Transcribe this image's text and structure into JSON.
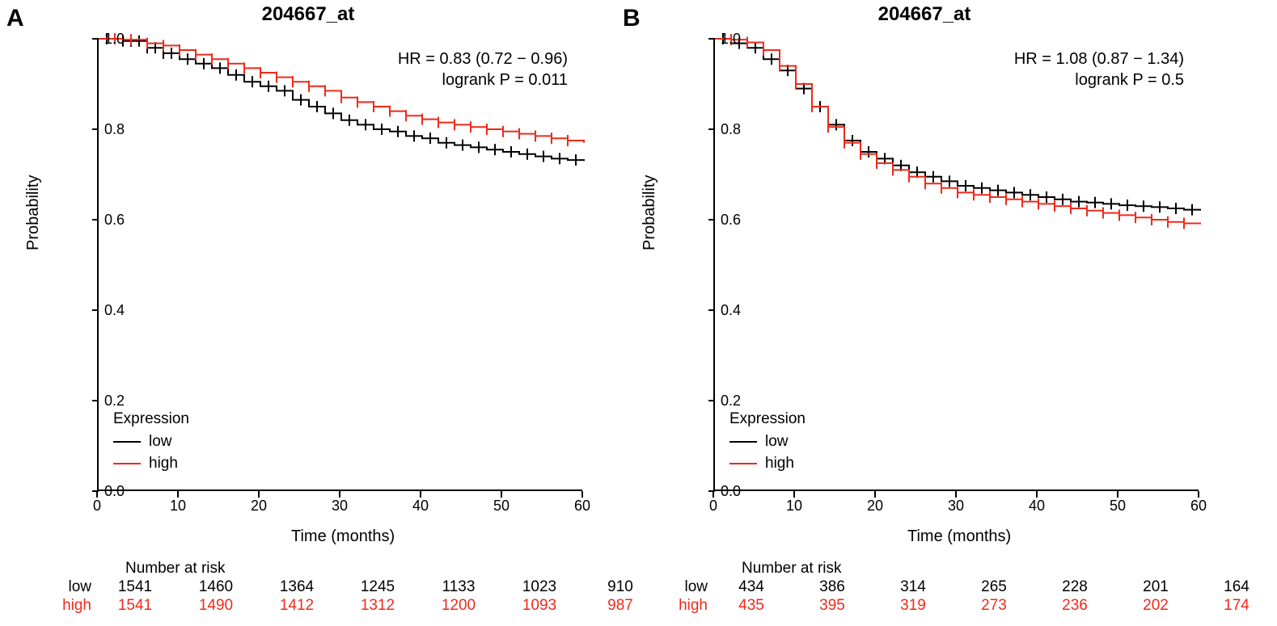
{
  "colors": {
    "low": "#000000",
    "high": "#ee2a1a",
    "censor": "#000000",
    "bg": "#ffffff"
  },
  "panels": [
    {
      "letter": "A",
      "title": "204667_at",
      "hr_line": "HR = 0.83 (0.72 − 0.96)",
      "p_line": "logrank P = 0.011",
      "legend_title": "Expression",
      "legend_low": "low",
      "legend_high": "high",
      "xlabel": "Time (months)",
      "ylabel": "Probability",
      "x_ticks": [
        0,
        10,
        20,
        30,
        40,
        50,
        60
      ],
      "y_ticks": [
        0.0,
        0.2,
        0.4,
        0.6,
        0.8,
        1.0
      ],
      "xlim": [
        0,
        60
      ],
      "ylim": [
        0,
        1
      ],
      "line_width": 2,
      "censor_size": 7,
      "series": {
        "low": {
          "color": "#000000",
          "points": [
            [
              0,
              1.0
            ],
            [
              3,
              0.995
            ],
            [
              6,
              0.98
            ],
            [
              8,
              0.968
            ],
            [
              10,
              0.955
            ],
            [
              12,
              0.945
            ],
            [
              14,
              0.935
            ],
            [
              16,
              0.92
            ],
            [
              18,
              0.905
            ],
            [
              20,
              0.895
            ],
            [
              22,
              0.885
            ],
            [
              24,
              0.865
            ],
            [
              26,
              0.85
            ],
            [
              28,
              0.835
            ],
            [
              30,
              0.82
            ],
            [
              32,
              0.81
            ],
            [
              34,
              0.8
            ],
            [
              36,
              0.795
            ],
            [
              38,
              0.785
            ],
            [
              40,
              0.78
            ],
            [
              42,
              0.77
            ],
            [
              44,
              0.765
            ],
            [
              46,
              0.76
            ],
            [
              48,
              0.755
            ],
            [
              50,
              0.75
            ],
            [
              52,
              0.745
            ],
            [
              54,
              0.74
            ],
            [
              56,
              0.735
            ],
            [
              58,
              0.732
            ],
            [
              60,
              0.73
            ]
          ],
          "censored": [
            1,
            2,
            3,
            4,
            5,
            6,
            7,
            8,
            9,
            11,
            13,
            15,
            17,
            19,
            21,
            23,
            25,
            27,
            29,
            31,
            33,
            35,
            37,
            39,
            41,
            43,
            45,
            47,
            49,
            51,
            53,
            55,
            57,
            59
          ]
        },
        "high": {
          "color": "#ee2a1a",
          "points": [
            [
              0,
              1.0
            ],
            [
              3,
              0.998
            ],
            [
              6,
              0.99
            ],
            [
              8,
              0.985
            ],
            [
              10,
              0.975
            ],
            [
              12,
              0.965
            ],
            [
              14,
              0.955
            ],
            [
              16,
              0.945
            ],
            [
              18,
              0.935
            ],
            [
              20,
              0.925
            ],
            [
              22,
              0.915
            ],
            [
              24,
              0.905
            ],
            [
              26,
              0.895
            ],
            [
              28,
              0.885
            ],
            [
              30,
              0.87
            ],
            [
              32,
              0.86
            ],
            [
              34,
              0.85
            ],
            [
              36,
              0.84
            ],
            [
              38,
              0.83
            ],
            [
              40,
              0.822
            ],
            [
              42,
              0.815
            ],
            [
              44,
              0.81
            ],
            [
              46,
              0.805
            ],
            [
              48,
              0.8
            ],
            [
              50,
              0.795
            ],
            [
              52,
              0.79
            ],
            [
              54,
              0.785
            ],
            [
              56,
              0.78
            ],
            [
              58,
              0.775
            ],
            [
              60,
              0.77
            ]
          ],
          "censored": [
            2,
            4,
            6,
            8,
            10,
            12,
            14,
            16,
            18,
            20,
            22,
            24,
            26,
            28,
            30,
            32,
            34,
            36,
            38,
            40,
            42,
            44,
            46,
            48,
            50,
            52,
            54,
            56,
            58
          ]
        }
      },
      "risk_title": "Number at risk",
      "risk": {
        "low": {
          "label": "low",
          "color": "#000000",
          "values": [
            "1541",
            "1460",
            "1364",
            "1245",
            "1133",
            "1023",
            "910"
          ]
        },
        "high": {
          "label": "high",
          "color": "#ee2a1a",
          "values": [
            "1541",
            "1490",
            "1412",
            "1312",
            "1200",
            "1093",
            "987"
          ]
        }
      }
    },
    {
      "letter": "B",
      "title": "204667_at",
      "hr_line": "HR = 1.08 (0.87 − 1.34)",
      "p_line": "logrank P = 0.5",
      "legend_title": "Expression",
      "legend_low": "low",
      "legend_high": "high",
      "xlabel": "Time (months)",
      "ylabel": "Probability",
      "x_ticks": [
        0,
        10,
        20,
        30,
        40,
        50,
        60
      ],
      "y_ticks": [
        0.0,
        0.2,
        0.4,
        0.6,
        0.8,
        1.0
      ],
      "xlim": [
        0,
        60
      ],
      "ylim": [
        0,
        1
      ],
      "line_width": 2,
      "censor_size": 7,
      "series": {
        "low": {
          "color": "#000000",
          "points": [
            [
              0,
              1.0
            ],
            [
              2,
              0.99
            ],
            [
              4,
              0.98
            ],
            [
              6,
              0.955
            ],
            [
              8,
              0.93
            ],
            [
              10,
              0.89
            ],
            [
              12,
              0.85
            ],
            [
              14,
              0.81
            ],
            [
              16,
              0.775
            ],
            [
              18,
              0.75
            ],
            [
              20,
              0.735
            ],
            [
              22,
              0.72
            ],
            [
              24,
              0.705
            ],
            [
              26,
              0.695
            ],
            [
              28,
              0.685
            ],
            [
              30,
              0.675
            ],
            [
              32,
              0.67
            ],
            [
              34,
              0.665
            ],
            [
              36,
              0.66
            ],
            [
              38,
              0.655
            ],
            [
              40,
              0.65
            ],
            [
              42,
              0.645
            ],
            [
              44,
              0.64
            ],
            [
              46,
              0.638
            ],
            [
              48,
              0.635
            ],
            [
              50,
              0.632
            ],
            [
              52,
              0.63
            ],
            [
              54,
              0.628
            ],
            [
              56,
              0.625
            ],
            [
              58,
              0.622
            ],
            [
              60,
              0.62
            ]
          ],
          "censored": [
            1,
            3,
            5,
            7,
            9,
            11,
            13,
            15,
            17,
            19,
            21,
            23,
            25,
            27,
            29,
            31,
            33,
            35,
            37,
            39,
            41,
            43,
            45,
            47,
            49,
            51,
            53,
            55,
            57,
            59
          ]
        },
        "high": {
          "color": "#ee2a1a",
          "points": [
            [
              0,
              1.0
            ],
            [
              2,
              0.998
            ],
            [
              4,
              0.992
            ],
            [
              6,
              0.975
            ],
            [
              8,
              0.94
            ],
            [
              10,
              0.9
            ],
            [
              12,
              0.85
            ],
            [
              14,
              0.805
            ],
            [
              16,
              0.77
            ],
            [
              18,
              0.745
            ],
            [
              20,
              0.725
            ],
            [
              22,
              0.71
            ],
            [
              24,
              0.695
            ],
            [
              26,
              0.68
            ],
            [
              28,
              0.67
            ],
            [
              30,
              0.66
            ],
            [
              32,
              0.655
            ],
            [
              34,
              0.65
            ],
            [
              36,
              0.645
            ],
            [
              38,
              0.64
            ],
            [
              40,
              0.635
            ],
            [
              42,
              0.63
            ],
            [
              44,
              0.625
            ],
            [
              46,
              0.62
            ],
            [
              48,
              0.615
            ],
            [
              50,
              0.61
            ],
            [
              52,
              0.605
            ],
            [
              54,
              0.6
            ],
            [
              56,
              0.595
            ],
            [
              58,
              0.592
            ],
            [
              60,
              0.59
            ]
          ],
          "censored": [
            2,
            4,
            6,
            8,
            10,
            12,
            14,
            16,
            18,
            20,
            22,
            24,
            26,
            28,
            30,
            32,
            34,
            36,
            38,
            40,
            42,
            44,
            46,
            48,
            50,
            52,
            54,
            56,
            58
          ]
        }
      },
      "risk_title": "Number at risk",
      "risk": {
        "low": {
          "label": "low",
          "color": "#000000",
          "values": [
            "434",
            "386",
            "314",
            "265",
            "228",
            "201",
            "164"
          ]
        },
        "high": {
          "label": "high",
          "color": "#ee2a1a",
          "values": [
            "435",
            "395",
            "319",
            "273",
            "236",
            "202",
            "174"
          ]
        }
      }
    }
  ]
}
